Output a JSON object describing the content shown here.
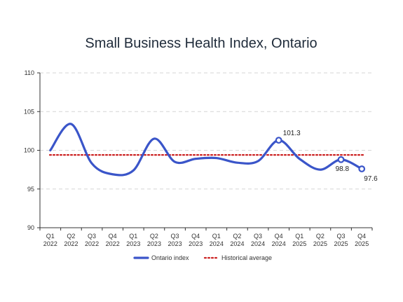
{
  "chart_data": {
    "type": "line",
    "title": "Small Business Health Index, Ontario",
    "xlabel": "",
    "ylabel": "",
    "categories": [
      [
        "Q1",
        "2022"
      ],
      [
        "Q2",
        "2022"
      ],
      [
        "Q3",
        "2022"
      ],
      [
        "Q4",
        "2022"
      ],
      [
        "Q1",
        "2023"
      ],
      [
        "Q2",
        "2023"
      ],
      [
        "Q3",
        "2023"
      ],
      [
        "Q4",
        "2023"
      ],
      [
        "Q1",
        "2024"
      ],
      [
        "Q2",
        "2024"
      ],
      [
        "Q3",
        "2024"
      ],
      [
        "Q4",
        "2024"
      ],
      [
        "Q1",
        "2025"
      ],
      [
        "Q2",
        "2025"
      ],
      [
        "Q3",
        "2025"
      ],
      [
        "Q4",
        "2025"
      ]
    ],
    "ylim": [
      90,
      110
    ],
    "yticks": [
      "90",
      "95",
      "100",
      "105",
      "110"
    ],
    "grid": {
      "horizontal": true,
      "vertical": false
    },
    "series": [
      {
        "name": "Ontario index",
        "color": "#3a55c9",
        "values": [
          100.0,
          103.4,
          98.3,
          96.9,
          97.4,
          101.5,
          98.5,
          98.9,
          99.0,
          98.4,
          98.6,
          101.3,
          98.9,
          97.5,
          98.8,
          97.6
        ]
      }
    ],
    "reference_line": {
      "name": "Historical average",
      "value": 99.4,
      "color": "#cc2222",
      "style": "dotted"
    },
    "annotations": [
      {
        "index": 11,
        "label": "101.3",
        "position": "above"
      },
      {
        "index": 14,
        "label": "98.8",
        "position": "below"
      },
      {
        "index": 15,
        "label": "97.6",
        "position": "below-right"
      }
    ],
    "legend": {
      "placement": "bottom-center",
      "entries": [
        "Ontario index",
        "Historical average"
      ]
    }
  }
}
